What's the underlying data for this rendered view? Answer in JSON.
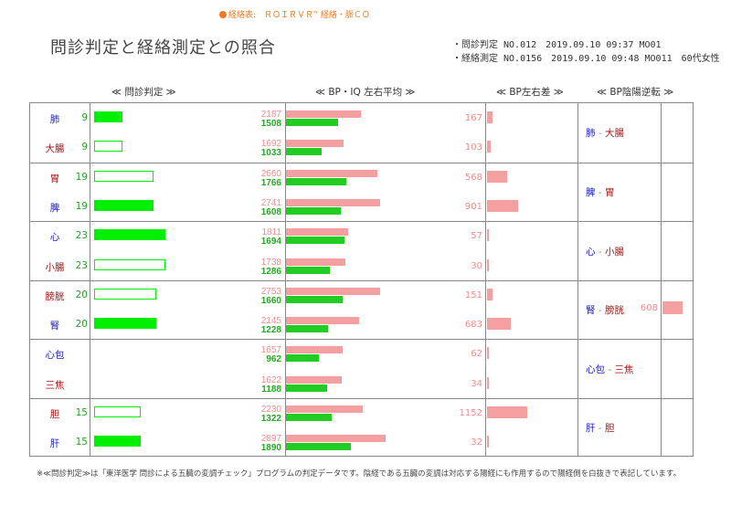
{
  "legend": {
    "text": "経絡表:　ＲＯＩＲＶＲ'' 経絡・脈ＣＯ"
  },
  "title": "問診判定と経絡測定との照合",
  "meta": {
    "line1": "・問診判定 NO.012　2019.09.10 09:37 MO01",
    "line2": "・経絡測定 NO.0156　2019.09.10 09:48 MO011　60代女性"
  },
  "headers": {
    "monshin": "≪ 問診判定 ≫",
    "bpiq": "≪ BP・IQ 左右平均 ≫",
    "lr": "≪ BP左右差 ≫",
    "yinyang": "≪ BP陰陽逆転 ≫"
  },
  "colors": {
    "score_bar": "#00ee00",
    "bp_bar": "#f4a0a0",
    "iq_bar": "#22cc22",
    "yin_text": "#2222bb",
    "yang_text": "#aa1111"
  },
  "rows": [
    {
      "organ": "肺",
      "type": "yin",
      "score": "9",
      "score_value": 9,
      "bp": "2187",
      "iq": "1508",
      "bp_value": 2187,
      "iq_value": 1508,
      "lr": "167",
      "lr_value": 167
    },
    {
      "organ": "大腸",
      "type": "yang",
      "score": "9",
      "score_value": 9,
      "bp": "1692",
      "iq": "1033",
      "bp_value": 1692,
      "iq_value": 1033,
      "lr": "103",
      "lr_value": 103
    },
    {
      "organ": "胃",
      "type": "yang",
      "score": "19",
      "score_value": 19,
      "bp": "2660",
      "iq": "1766",
      "bp_value": 2660,
      "iq_value": 1766,
      "lr": "568",
      "lr_value": 568
    },
    {
      "organ": "脾",
      "type": "yin",
      "score": "19",
      "score_value": 19,
      "bp": "2741",
      "iq": "1608",
      "bp_value": 2741,
      "iq_value": 1608,
      "lr": "901",
      "lr_value": 901
    },
    {
      "organ": "心",
      "type": "yin",
      "score": "23",
      "score_value": 23,
      "bp": "1811",
      "iq": "1694",
      "bp_value": 1811,
      "iq_value": 1694,
      "lr": "57",
      "lr_value": 57
    },
    {
      "organ": "小腸",
      "type": "yang",
      "score": "23",
      "score_value": 23,
      "bp": "1738",
      "iq": "1286",
      "bp_value": 1738,
      "iq_value": 1286,
      "lr": "30",
      "lr_value": 30
    },
    {
      "organ": "膀胱",
      "type": "yang",
      "score": "20",
      "score_value": 20,
      "bp": "2753",
      "iq": "1660",
      "bp_value": 2753,
      "iq_value": 1660,
      "lr": "151",
      "lr_value": 151
    },
    {
      "organ": "腎",
      "type": "yin",
      "score": "20",
      "score_value": 20,
      "bp": "2145",
      "iq": "1228",
      "bp_value": 2145,
      "iq_value": 1228,
      "lr": "683",
      "lr_value": 683
    },
    {
      "organ": "心包",
      "type": "yin",
      "score": "",
      "score_value": null,
      "bp": "1657",
      "iq": "962",
      "bp_value": 1657,
      "iq_value": 962,
      "lr": "62",
      "lr_value": 62
    },
    {
      "organ": "三焦",
      "type": "yang",
      "score": "",
      "score_value": null,
      "bp": "1622",
      "iq": "1188",
      "bp_value": 1622,
      "iq_value": 1188,
      "lr": "34",
      "lr_value": 34
    },
    {
      "organ": "胆",
      "type": "yang",
      "score": "15",
      "score_value": 15,
      "bp": "2230",
      "iq": "1322",
      "bp_value": 2230,
      "iq_value": 1322,
      "lr": "1152",
      "lr_value": 1152
    },
    {
      "organ": "肝",
      "type": "yin",
      "score": "15",
      "score_value": 15,
      "bp": "2897",
      "iq": "1890",
      "bp_value": 2897,
      "iq_value": 1890,
      "lr": "32",
      "lr_value": 32
    }
  ],
  "pairs": [
    {
      "yin": "肺",
      "yang": "大腸",
      "reversal": "",
      "reversal_value": 0
    },
    {
      "yin": "脾",
      "yang": "胃",
      "reversal": "",
      "reversal_value": 0
    },
    {
      "yin": "心",
      "yang": "小腸",
      "reversal": "",
      "reversal_value": 0
    },
    {
      "yin": "腎",
      "yang": "膀胱",
      "reversal": "608",
      "reversal_value": 608
    },
    {
      "yin": "心包",
      "yang": "三焦",
      "reversal": "",
      "reversal_value": 0
    },
    {
      "yin": "肝",
      "yang": "胆",
      "reversal": "",
      "reversal_value": 0
    }
  ],
  "footnote": "※≪問診判定≫は「東洋医学 問診による五臓の変調チェック」プログラムの判定データです。陰経である五臓の変調は対応する陽経にも作用するので陽経側を白抜きで表記しています。"
}
